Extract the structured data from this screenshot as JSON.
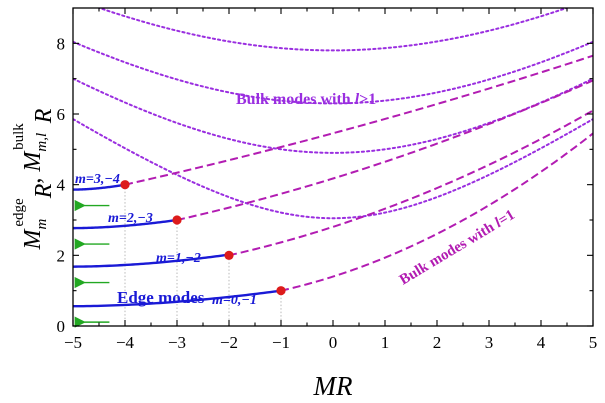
{
  "chart_data": {
    "type": "line",
    "xlabel": "MR",
    "ylabel": "M_m^edge R, M_{m,l}^bulk R",
    "xlim": [
      -5,
      5
    ],
    "ylim": [
      0,
      9
    ],
    "xticks": [
      -5,
      -4,
      -3,
      -2,
      -1,
      0,
      1,
      2,
      3,
      4,
      5
    ],
    "yticks": [
      0,
      2,
      4,
      6,
      8
    ],
    "yticks_minor": [
      1,
      3,
      5,
      7
    ],
    "colors": {
      "edge": "#1a1ad6",
      "bulk_l1": "#b21cb2",
      "bulk_lgt1": "#9a2ee0",
      "point": "#dd1b1b",
      "arrow": "#22a822",
      "drop": "#b9b9b9"
    },
    "edge_modes": [
      {
        "label": "m=0,−1",
        "x": [
          -5,
          -1
        ],
        "y_left": 0.56,
        "y_end": 1.0,
        "asymptote": 0.56
      },
      {
        "label": "m=1,−2",
        "x": [
          -5,
          -2
        ],
        "y_left": 1.68,
        "y_end": 2.02,
        "asymptote": 1.68
      },
      {
        "label": "m=2,−3",
        "x": [
          -5,
          -3
        ],
        "y_left": 2.77,
        "y_end": 3.0,
        "asymptote": 2.77
      },
      {
        "label": "m=3,−4",
        "x": [
          -5,
          -4
        ],
        "y_left": 3.86,
        "y_end": 4.0,
        "asymptote": 3.86
      }
    ],
    "bulk_l1": [
      {
        "from": [
          -1,
          1.0
        ],
        "y_at_5": 5.45
      },
      {
        "from": [
          -2,
          2.0
        ],
        "y_at_5": 6.1
      },
      {
        "from": [
          -3,
          3.0
        ],
        "y_at_5": 6.95
      },
      {
        "from": [
          -4,
          4.0
        ],
        "y_at_5": 7.65
      }
    ],
    "bulk_lgt1": [
      {
        "k": 3.05,
        "x_at": [
          -5,
          5
        ],
        "note": "y = sqrt(x^2 + k^2)"
      },
      {
        "k": 4.9,
        "x_at": [
          -5,
          5
        ]
      },
      {
        "k": 6.3,
        "x_at": [
          -5,
          5
        ]
      },
      {
        "k": 7.8,
        "x_at": [
          -5,
          5
        ]
      }
    ],
    "endpoints": [
      {
        "x": -1,
        "y": 1.0
      },
      {
        "x": -2,
        "y": 2.0
      },
      {
        "x": -3,
        "y": 3.0
      },
      {
        "x": -4,
        "y": 4.0
      }
    ],
    "annotations": {
      "edge": "Edge modes",
      "bulk_l1_prefix": "Bulk modes with ",
      "bulk_l1_var": "l",
      "bulk_l1_suffix": "=1",
      "bulk_lgt1_prefix": "Bulk modes with ",
      "bulk_lgt1_var": "l",
      "bulk_lgt1_suffix": ">1"
    }
  }
}
